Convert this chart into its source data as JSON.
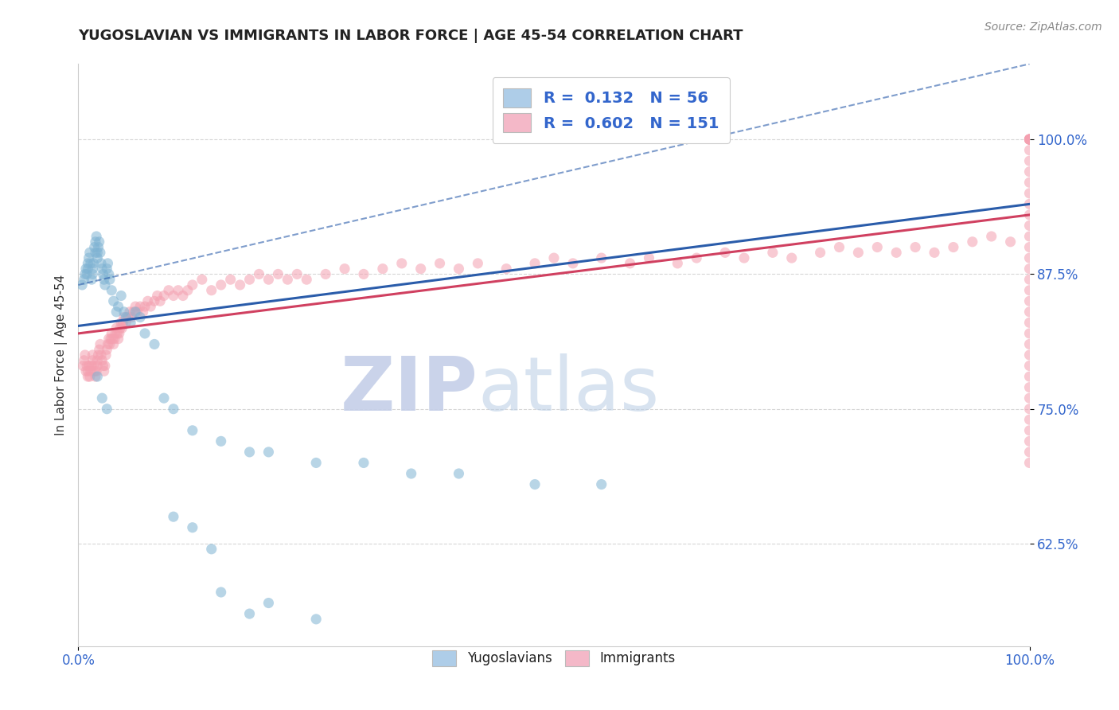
{
  "title": "YUGOSLAVIAN VS IMMIGRANTS IN LABOR FORCE | AGE 45-54 CORRELATION CHART",
  "source_text": "Source: ZipAtlas.com",
  "ylabel": "In Labor Force | Age 45-54",
  "xlim": [
    0.0,
    1.0
  ],
  "ylim": [
    0.53,
    1.07
  ],
  "ytick_positions": [
    0.625,
    0.75,
    0.875,
    1.0
  ],
  "ytick_labels": [
    "62.5%",
    "75.0%",
    "87.5%",
    "100.0%"
  ],
  "legend_label_blue": "R =  0.132   N = 56",
  "legend_label_pink": "R =  0.602   N = 151",
  "bottom_legend": [
    "Yugoslavians",
    "Immigrants"
  ],
  "blue_scatter_color": "#7fb3d3",
  "pink_scatter_color": "#f4a0b0",
  "blue_line_color": "#2a5caa",
  "pink_line_color": "#d04060",
  "blue_legend_color": "#aecde8",
  "pink_legend_color": "#f4b8c8",
  "watermark_zip_color": "#c5cfe8",
  "watermark_atlas_color": "#b8cce4",
  "yug_x": [
    0.004,
    0.006,
    0.007,
    0.008,
    0.009,
    0.01,
    0.01,
    0.011,
    0.012,
    0.013,
    0.014,
    0.015,
    0.015,
    0.016,
    0.017,
    0.018,
    0.018,
    0.019,
    0.02,
    0.02,
    0.021,
    0.022,
    0.023,
    0.024,
    0.025,
    0.026,
    0.027,
    0.028,
    0.03,
    0.031,
    0.032,
    0.033,
    0.035,
    0.037,
    0.04,
    0.042,
    0.045,
    0.048,
    0.05,
    0.055,
    0.06,
    0.065,
    0.07,
    0.08,
    0.09,
    0.1,
    0.12,
    0.15,
    0.18,
    0.2,
    0.25,
    0.3,
    0.35,
    0.4,
    0.48,
    0.55
  ],
  "yug_y": [
    0.865,
    0.87,
    0.875,
    0.88,
    0.875,
    0.88,
    0.885,
    0.89,
    0.895,
    0.885,
    0.87,
    0.875,
    0.88,
    0.885,
    0.9,
    0.895,
    0.905,
    0.91,
    0.89,
    0.895,
    0.9,
    0.905,
    0.895,
    0.885,
    0.88,
    0.875,
    0.87,
    0.865,
    0.88,
    0.885,
    0.875,
    0.87,
    0.86,
    0.85,
    0.84,
    0.845,
    0.855,
    0.84,
    0.835,
    0.83,
    0.84,
    0.835,
    0.82,
    0.81,
    0.76,
    0.75,
    0.73,
    0.72,
    0.71,
    0.71,
    0.7,
    0.7,
    0.69,
    0.69,
    0.68,
    0.68
  ],
  "yug_outlier_x": [
    0.02,
    0.025,
    0.03,
    0.1,
    0.12,
    0.14,
    0.15,
    0.18,
    0.2,
    0.25
  ],
  "yug_outlier_y": [
    0.78,
    0.76,
    0.75,
    0.65,
    0.64,
    0.62,
    0.58,
    0.56,
    0.57,
    0.555
  ],
  "imm_x": [
    0.005,
    0.006,
    0.007,
    0.008,
    0.009,
    0.01,
    0.01,
    0.011,
    0.012,
    0.013,
    0.014,
    0.015,
    0.015,
    0.016,
    0.017,
    0.018,
    0.019,
    0.02,
    0.02,
    0.021,
    0.022,
    0.023,
    0.024,
    0.025,
    0.026,
    0.027,
    0.028,
    0.029,
    0.03,
    0.031,
    0.032,
    0.033,
    0.034,
    0.035,
    0.036,
    0.037,
    0.038,
    0.039,
    0.04,
    0.041,
    0.042,
    0.043,
    0.044,
    0.045,
    0.046,
    0.047,
    0.048,
    0.05,
    0.052,
    0.054,
    0.056,
    0.058,
    0.06,
    0.062,
    0.065,
    0.068,
    0.07,
    0.073,
    0.076,
    0.08,
    0.083,
    0.086,
    0.09,
    0.095,
    0.1,
    0.105,
    0.11,
    0.115,
    0.12,
    0.13,
    0.14,
    0.15,
    0.16,
    0.17,
    0.18,
    0.19,
    0.2,
    0.21,
    0.22,
    0.23,
    0.24,
    0.26,
    0.28,
    0.3,
    0.32,
    0.34,
    0.36,
    0.38,
    0.4,
    0.42,
    0.45,
    0.48,
    0.5,
    0.52,
    0.55,
    0.58,
    0.6,
    0.63,
    0.65,
    0.68,
    0.7,
    0.73,
    0.75,
    0.78,
    0.8,
    0.82,
    0.84,
    0.86,
    0.88,
    0.9,
    0.92,
    0.94,
    0.96,
    0.98,
    1.0,
    1.0,
    1.0,
    1.0,
    1.0,
    1.0,
    1.0,
    1.0,
    1.0,
    1.0,
    1.0,
    1.0,
    1.0,
    1.0,
    1.0,
    1.0,
    1.0,
    1.0,
    1.0,
    1.0,
    1.0,
    1.0,
    1.0,
    1.0,
    1.0,
    1.0,
    1.0,
    1.0,
    1.0,
    1.0,
    1.0,
    1.0,
    1.0,
    1.0,
    1.0,
    1.0,
    1.0
  ],
  "imm_y": [
    0.79,
    0.795,
    0.8,
    0.785,
    0.79,
    0.78,
    0.785,
    0.79,
    0.78,
    0.785,
    0.79,
    0.795,
    0.8,
    0.79,
    0.785,
    0.78,
    0.785,
    0.79,
    0.795,
    0.8,
    0.805,
    0.81,
    0.8,
    0.795,
    0.79,
    0.785,
    0.79,
    0.8,
    0.805,
    0.81,
    0.815,
    0.81,
    0.815,
    0.82,
    0.815,
    0.81,
    0.815,
    0.82,
    0.825,
    0.82,
    0.815,
    0.82,
    0.825,
    0.83,
    0.825,
    0.83,
    0.835,
    0.83,
    0.835,
    0.84,
    0.835,
    0.84,
    0.845,
    0.84,
    0.845,
    0.84,
    0.845,
    0.85,
    0.845,
    0.85,
    0.855,
    0.85,
    0.855,
    0.86,
    0.855,
    0.86,
    0.855,
    0.86,
    0.865,
    0.87,
    0.86,
    0.865,
    0.87,
    0.865,
    0.87,
    0.875,
    0.87,
    0.875,
    0.87,
    0.875,
    0.87,
    0.875,
    0.88,
    0.875,
    0.88,
    0.885,
    0.88,
    0.885,
    0.88,
    0.885,
    0.88,
    0.885,
    0.89,
    0.885,
    0.89,
    0.885,
    0.89,
    0.885,
    0.89,
    0.895,
    0.89,
    0.895,
    0.89,
    0.895,
    0.9,
    0.895,
    0.9,
    0.895,
    0.9,
    0.895,
    0.9,
    0.905,
    0.91,
    0.905,
    1.0,
    1.0,
    1.0,
    1.0,
    1.0,
    1.0,
    1.0,
    0.98,
    0.99,
    0.95,
    0.96,
    0.97,
    0.93,
    0.94,
    0.91,
    0.92,
    0.9,
    0.89,
    0.88,
    0.87,
    0.86,
    0.85,
    0.84,
    0.83,
    0.82,
    0.81,
    0.8,
    0.79,
    0.78,
    0.77,
    0.76,
    0.75,
    0.74,
    0.73,
    0.72,
    0.71,
    0.7
  ],
  "yug_trendline_x0": 0.0,
  "yug_trendline_y0": 0.827,
  "yug_trendline_x1": 1.0,
  "yug_trendline_y1": 0.94,
  "imm_trendline_x0": 0.0,
  "imm_trendline_y0": 0.82,
  "imm_trendline_x1": 1.0,
  "imm_trendline_y1": 0.93
}
